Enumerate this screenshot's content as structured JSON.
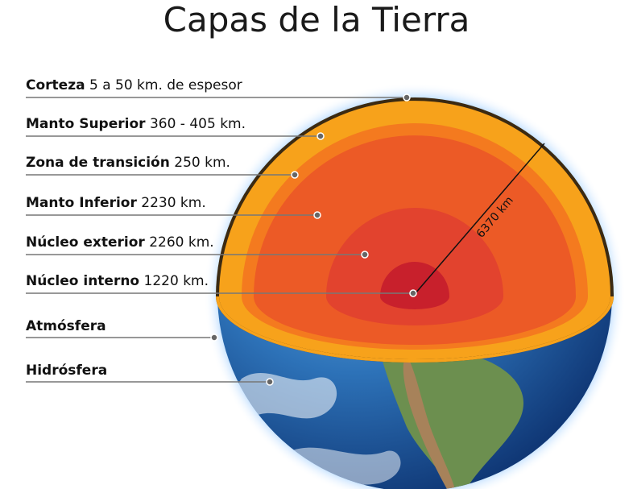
{
  "title": "Capas de la Tierra",
  "radius_label": "6370 km",
  "layers": [
    {
      "name": "Corteza",
      "detail": "5 a 50 km. de espesor"
    },
    {
      "name": "Manto Superior",
      "detail": "360 - 405 km."
    },
    {
      "name": "Zona de transición",
      "detail": "250 km."
    },
    {
      "name": "Manto Inferior",
      "detail": "2230 km."
    },
    {
      "name": "Núcleo exterior",
      "detail": "2260 km."
    },
    {
      "name": "Núcleo interno",
      "detail": "1220 km."
    },
    {
      "name": "Atmósfera",
      "detail": ""
    },
    {
      "name": "Hidrósfera",
      "detail": ""
    }
  ]
}
